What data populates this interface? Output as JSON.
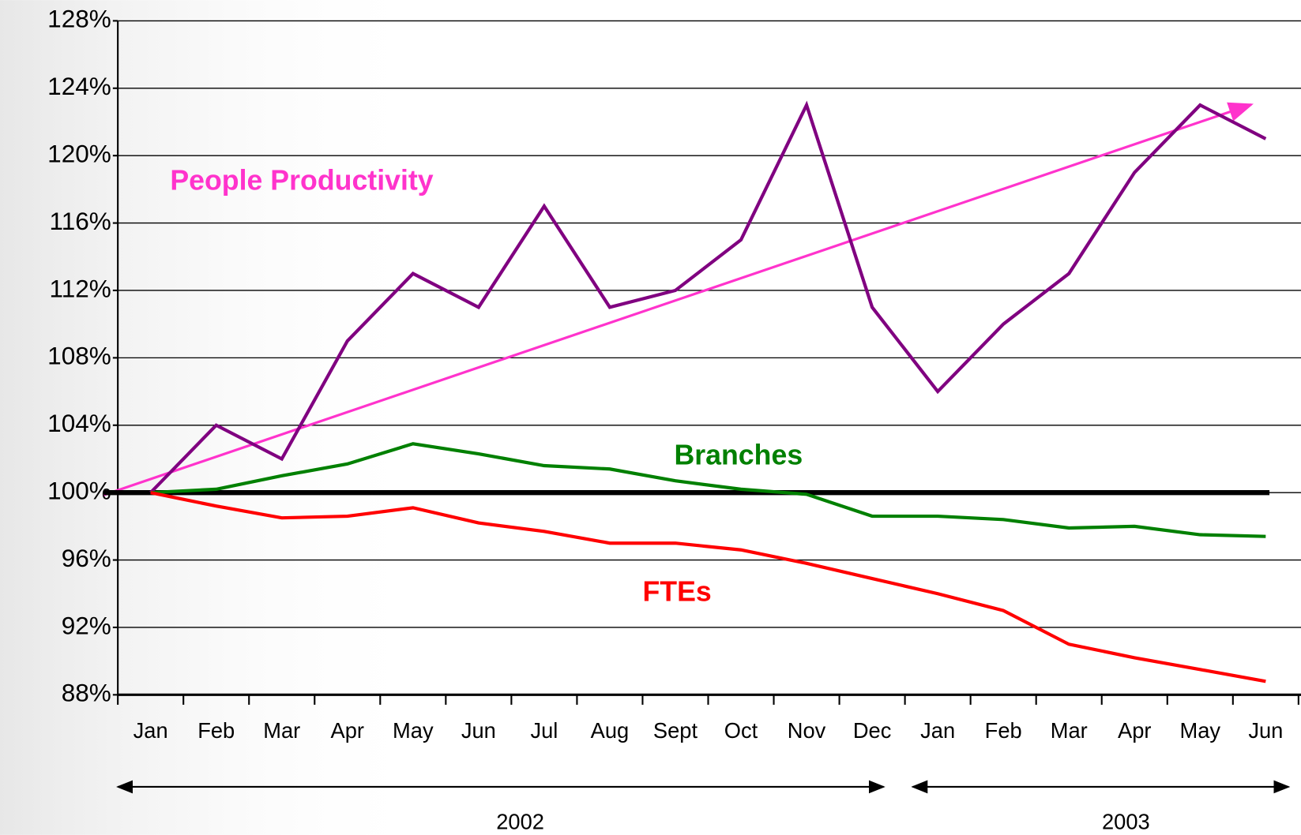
{
  "chart_data": {
    "type": "line",
    "categories": [
      "Jan",
      "Feb",
      "Mar",
      "Apr",
      "May",
      "Jun",
      "Jul",
      "Aug",
      "Sept",
      "Oct",
      "Nov",
      "Dec",
      "Jan",
      "Feb",
      "Mar",
      "Apr",
      "May",
      "Jun"
    ],
    "series": [
      {
        "name": "People Productivity",
        "color": "#800080",
        "values": [
          100,
          104,
          102,
          109,
          113,
          111,
          117,
          111,
          112,
          115,
          123,
          111,
          106,
          110,
          113,
          119,
          123,
          121
        ]
      },
      {
        "name": "Branches",
        "color": "#008000",
        "values": [
          100,
          100.2,
          101,
          101.7,
          102.9,
          102.3,
          101.6,
          101.4,
          100.7,
          100.2,
          99.9,
          98.6,
          98.6,
          98.4,
          97.9,
          98,
          97.5,
          97.4
        ]
      },
      {
        "name": "FTEs",
        "color": "#ff0000",
        "values": [
          100,
          99.2,
          98.5,
          98.6,
          99.1,
          98.2,
          97.7,
          97,
          97,
          96.6,
          95.8,
          94.9,
          94,
          93,
          91,
          90.2,
          89.5,
          88.8
        ]
      }
    ],
    "reference_line": 100,
    "ylim": [
      88,
      128
    ],
    "yticks": [
      {
        "value": 88,
        "label": "88%"
      },
      {
        "value": 92,
        "label": "92%"
      },
      {
        "value": 96,
        "label": "96%"
      },
      {
        "value": 100,
        "label": "100%"
      },
      {
        "value": 104,
        "label": "104%"
      },
      {
        "value": 108,
        "label": "108%"
      },
      {
        "value": 112,
        "label": "112%"
      },
      {
        "value": 116,
        "label": "116%"
      },
      {
        "value": 120,
        "label": "120%"
      },
      {
        "value": 124,
        "label": "124%"
      },
      {
        "value": 128,
        "label": "128%"
      }
    ],
    "grid": true,
    "periods": [
      "2002",
      "2003"
    ]
  }
}
